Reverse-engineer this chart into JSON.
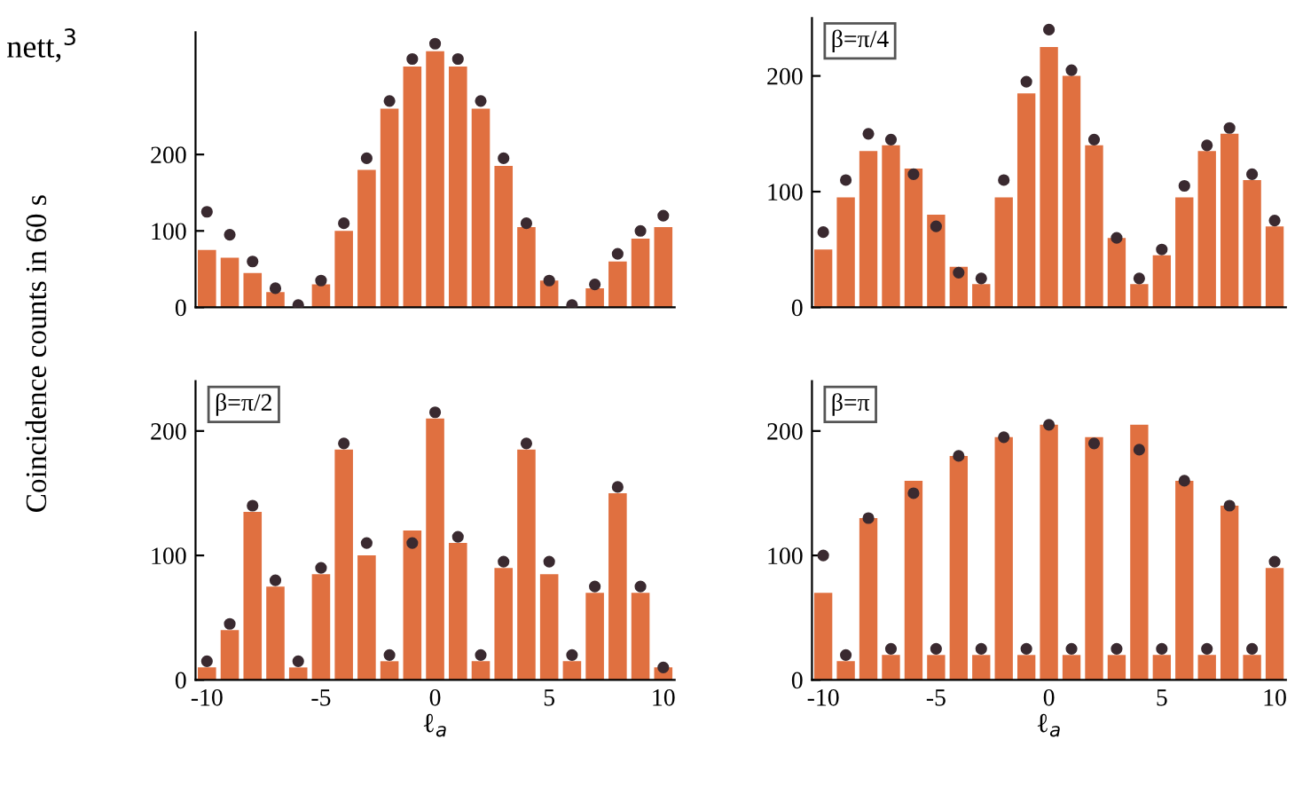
{
  "chart_data": [
    {
      "type": "bar",
      "annotations": [
        "nett,$^{3}$"
      ],
      "x": [
        -10,
        -9,
        -8,
        -7,
        -6,
        -5,
        -4,
        -3,
        -2,
        -1,
        0,
        1,
        2,
        3,
        4,
        5,
        6,
        7,
        8,
        9,
        10
      ],
      "series": [
        {
          "color": "#e07040",
          "values": [
            75,
            65,
            45,
            20,
            null,
            30,
            100,
            180,
            260,
            315,
            335,
            315,
            260,
            185,
            105,
            35,
            null,
            25,
            60,
            90,
            105
          ]
        },
        {
          "type": "scatter",
          "color": "#3a2a30",
          "values": [
            125,
            95,
            60,
            25,
            3,
            35,
            110,
            195,
            270,
            325,
            345,
            325,
            270,
            195,
            110,
            35,
            3,
            30,
            70,
            100,
            120
          ]
        }
      ],
      "xlim": [
        -10.5,
        10.5
      ],
      "xticks": [
        -10,
        -5,
        0,
        5,
        10
      ],
      "ylim": [
        0,
        360
      ],
      "yticks": [
        0,
        100,
        200
      ],
      "tick_labels": "y",
      "marker": "circle"
    },
    {
      "type": "bar",
      "annotations": [
        "β=π/4"
      ],
      "x": [
        -10,
        -9,
        -8,
        -7,
        -6,
        -5,
        -4,
        -3,
        -2,
        -1,
        0,
        1,
        2,
        3,
        4,
        5,
        6,
        7,
        8,
        9,
        10
      ],
      "series": [
        {
          "color": "#e07040",
          "values": [
            50,
            95,
            135,
            140,
            120,
            80,
            35,
            20,
            95,
            185,
            225,
            200,
            140,
            60,
            20,
            45,
            95,
            135,
            150,
            110,
            70
          ]
        },
        {
          "type": "scatter",
          "color": "#3a2a30",
          "values": [
            65,
            110,
            150,
            145,
            115,
            70,
            30,
            25,
            110,
            195,
            240,
            205,
            145,
            60,
            25,
            50,
            105,
            140,
            155,
            115,
            75
          ]
        }
      ],
      "xlim": [
        -10.5,
        10.5
      ],
      "xticks": [
        -10,
        -5,
        0,
        5,
        10
      ],
      "ylim": [
        0,
        250
      ],
      "yticks": [
        0,
        100,
        200
      ],
      "tick_labels": "y",
      "marker": "circle"
    },
    {
      "type": "bar",
      "annotations": [
        "β=π/2"
      ],
      "ylabel": "Coincidence counts in 60 s",
      "xlabel": "ℓ$_{a}$",
      "x": [
        -10,
        -9,
        -8,
        -7,
        -6,
        -5,
        -4,
        -3,
        -2,
        -1,
        0,
        1,
        2,
        3,
        4,
        5,
        6,
        7,
        8,
        9,
        10
      ],
      "series": [
        {
          "color": "#e07040",
          "values": [
            10,
            40,
            135,
            75,
            10,
            85,
            185,
            100,
            15,
            120,
            210,
            110,
            15,
            90,
            185,
            85,
            15,
            70,
            150,
            70,
            10
          ]
        },
        {
          "type": "scatter",
          "color": "#3a2a30",
          "values": [
            15,
            45,
            140,
            80,
            15,
            90,
            190,
            110,
            20,
            110,
            215,
            115,
            20,
            95,
            190,
            95,
            20,
            75,
            155,
            75,
            10
          ]
        }
      ],
      "xlim": [
        -10.5,
        10.5
      ],
      "xticks": [
        -10,
        -5,
        0,
        5,
        10
      ],
      "ylim": [
        0,
        240
      ],
      "yticks": [
        0,
        100,
        200
      ],
      "marker": "circle"
    },
    {
      "type": "bar",
      "annotations": [
        "β=π"
      ],
      "xlabel": "ℓ$_{a}$",
      "x": [
        -10,
        -9,
        -8,
        -7,
        -6,
        -5,
        -4,
        -3,
        -2,
        -1,
        0,
        1,
        2,
        3,
        4,
        5,
        6,
        7,
        8,
        9,
        10
      ],
      "series": [
        {
          "color": "#e07040",
          "values": [
            70,
            15,
            130,
            20,
            160,
            20,
            180,
            20,
            195,
            20,
            205,
            20,
            195,
            20,
            205,
            20,
            160,
            20,
            140,
            20,
            90
          ]
        },
        {
          "type": "scatter",
          "color": "#3a2a30",
          "values": [
            100,
            20,
            130,
            25,
            150,
            25,
            180,
            25,
            195,
            25,
            205,
            25,
            190,
            25,
            185,
            25,
            160,
            25,
            140,
            25,
            95
          ]
        }
      ],
      "xlim": [
        -10.5,
        10.5
      ],
      "xticks": [
        -10,
        -5,
        0,
        5,
        10
      ],
      "ylim": [
        0,
        240
      ],
      "yticks": [
        0,
        100,
        200
      ],
      "marker": "circle"
    }
  ]
}
